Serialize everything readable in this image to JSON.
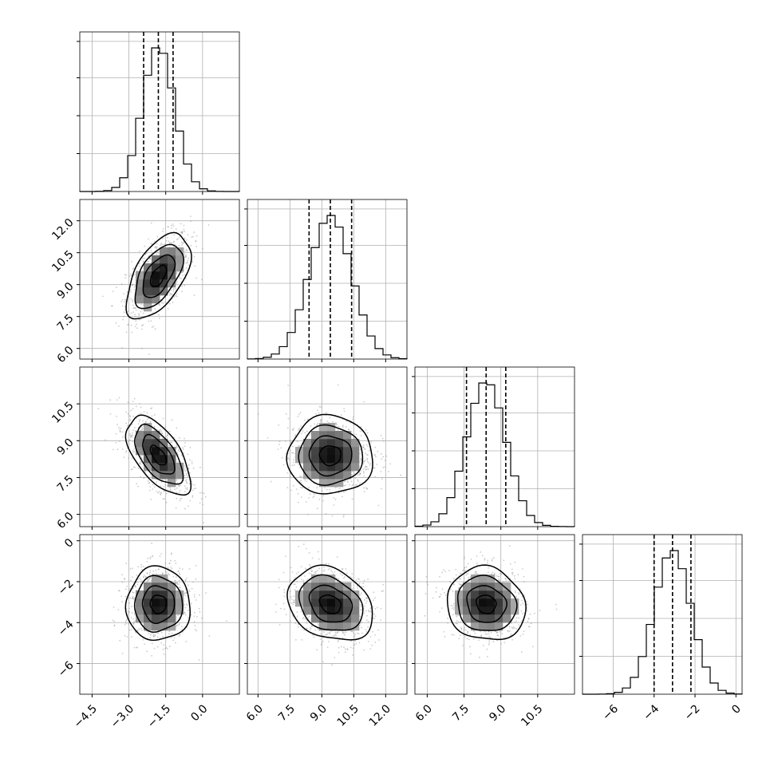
{
  "chart_data": {
    "type": "corner",
    "grid": true,
    "params": [
      {
        "mean": -1.8,
        "sd": 0.65,
        "range": [
          -5.0,
          1.5
        ],
        "ticks": [
          -4.5,
          -3.0,
          -1.5,
          0.0
        ],
        "tick_labels": [
          "−4.5",
          "−3.0",
          "−1.5",
          "0.0"
        ],
        "quantiles": [
          -2.4,
          -1.8,
          -1.2
        ]
      },
      {
        "mean": 9.4,
        "sd": 1.0,
        "range": [
          5.5,
          13.0
        ],
        "ticks": [
          6.0,
          7.5,
          9.0,
          10.5,
          12.0
        ],
        "tick_labels": [
          "6.0",
          "7.5",
          "9.0",
          "10.5",
          "12.0"
        ],
        "quantiles": [
          8.4,
          9.4,
          10.4
        ]
      },
      {
        "mean": 8.4,
        "sd": 0.8,
        "range": [
          5.5,
          12.0
        ],
        "ticks": [
          6.0,
          7.5,
          9.0,
          10.5
        ],
        "tick_labels": [
          "6.0",
          "7.5",
          "9.0",
          "10.5"
        ],
        "quantiles": [
          7.6,
          8.4,
          9.2
        ]
      },
      {
        "mean": -3.1,
        "sd": 0.9,
        "range": [
          -7.5,
          0.3
        ],
        "ticks": [
          -6,
          -4,
          -2,
          0
        ],
        "tick_labels": [
          "−6",
          "−4",
          "−2",
          "0"
        ],
        "quantiles": [
          -4.0,
          -3.1,
          -2.2
        ]
      }
    ],
    "correlations": [
      {
        "i": 1,
        "j": 0,
        "rho": 0.55
      },
      {
        "i": 2,
        "j": 0,
        "rho": -0.6
      },
      {
        "i": 2,
        "j": 1,
        "rho": 0.0
      },
      {
        "i": 3,
        "j": 0,
        "rho": 0.0
      },
      {
        "i": 3,
        "j": 1,
        "rho": -0.25
      },
      {
        "i": 3,
        "j": 2,
        "rho": -0.1
      }
    ],
    "histogram_bins": 20,
    "contour_levels": [
      0.5,
      1.0,
      1.5,
      2.0
    ]
  }
}
